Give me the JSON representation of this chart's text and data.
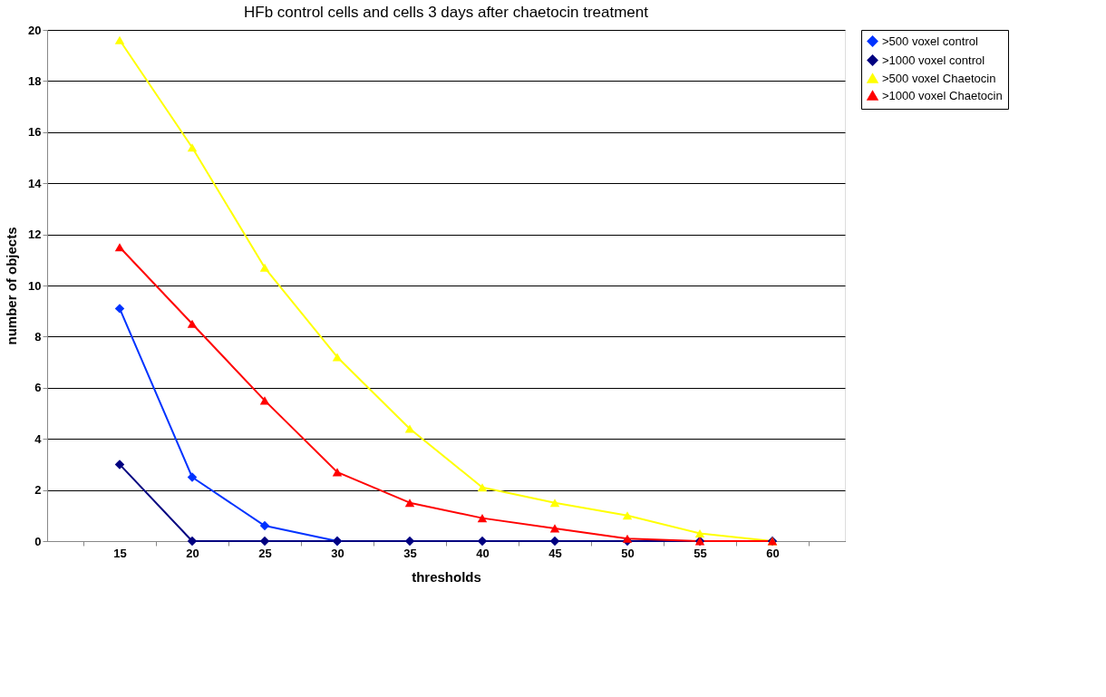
{
  "chart_data": {
    "type": "line",
    "title": "HFb control cells and cells 3 days after chaetocin treatment",
    "xlabel": "thresholds",
    "ylabel": "number of objects",
    "categories": [
      "15",
      "20",
      "25",
      "30",
      "35",
      "40",
      "45",
      "50",
      "55",
      "60"
    ],
    "series": [
      {
        "name": ">500 voxel control",
        "color": "#0033ff",
        "marker": "diamond",
        "values": [
          9.1,
          2.5,
          0.6,
          0,
          null,
          null,
          null,
          null,
          null,
          null
        ]
      },
      {
        "name": ">1000 voxel control",
        "color": "#000080",
        "marker": "diamond",
        "values": [
          3.0,
          0,
          0,
          0,
          0,
          0,
          0,
          0,
          0,
          0
        ]
      },
      {
        "name": ">500 voxel Chaetocin",
        "color": "#ffff00",
        "marker": "triangle",
        "values": [
          19.6,
          15.4,
          10.7,
          7.2,
          4.4,
          2.1,
          1.5,
          1.0,
          0.3,
          0
        ]
      },
      {
        "name": ">1000 voxel Chaetocin",
        "color": "#ff0000",
        "marker": "triangle",
        "values": [
          11.5,
          8.5,
          5.5,
          2.7,
          1.5,
          0.9,
          0.5,
          0.1,
          0,
          0
        ]
      }
    ],
    "ylim": [
      0,
      20
    ],
    "yticks": [
      0,
      2,
      4,
      6,
      8,
      10,
      12,
      14,
      16,
      18,
      20
    ],
    "grid": "y",
    "legend": "right",
    "line_style": "solid"
  }
}
